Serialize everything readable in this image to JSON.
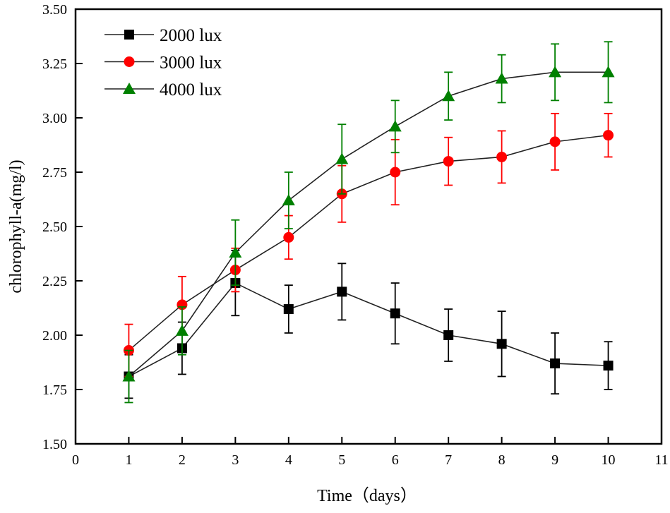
{
  "chart_data": {
    "type": "line",
    "xlabel": "Time（days）",
    "ylabel": "chlorophyll-a(mg/l)",
    "xlim": [
      0,
      11
    ],
    "ylim": [
      1.5,
      3.5
    ],
    "xticks": [
      0,
      1,
      2,
      3,
      4,
      5,
      6,
      7,
      8,
      9,
      10,
      11
    ],
    "yticks": [
      "1.50",
      "1.75",
      "2.00",
      "2.25",
      "2.50",
      "2.75",
      "3.00",
      "3.25",
      "3.50"
    ],
    "grid": false,
    "legend_position": "top-left",
    "x": [
      1,
      2,
      3,
      4,
      5,
      6,
      7,
      8,
      9,
      10
    ],
    "series": [
      {
        "name": "2000 lux",
        "color": "#000000",
        "marker": "square",
        "values": [
          1.81,
          1.94,
          2.24,
          2.12,
          2.2,
          2.1,
          2.0,
          1.96,
          1.87,
          1.86
        ],
        "errors": [
          0.1,
          0.12,
          0.15,
          0.11,
          0.13,
          0.14,
          0.12,
          0.15,
          0.14,
          0.11
        ]
      },
      {
        "name": "3000 lux",
        "color": "#ff0000",
        "marker": "circle",
        "values": [
          1.93,
          2.14,
          2.3,
          2.45,
          2.65,
          2.75,
          2.8,
          2.82,
          2.89,
          2.92
        ],
        "errors": [
          0.12,
          0.13,
          0.1,
          0.1,
          0.13,
          0.15,
          0.11,
          0.12,
          0.13,
          0.1
        ]
      },
      {
        "name": "4000 lux",
        "color": "#008000",
        "marker": "triangle",
        "values": [
          1.81,
          2.02,
          2.38,
          2.62,
          2.81,
          2.96,
          3.1,
          3.18,
          3.21,
          3.21
        ],
        "errors": [
          0.12,
          0.11,
          0.15,
          0.13,
          0.16,
          0.12,
          0.11,
          0.11,
          0.13,
          0.14
        ]
      }
    ]
  }
}
